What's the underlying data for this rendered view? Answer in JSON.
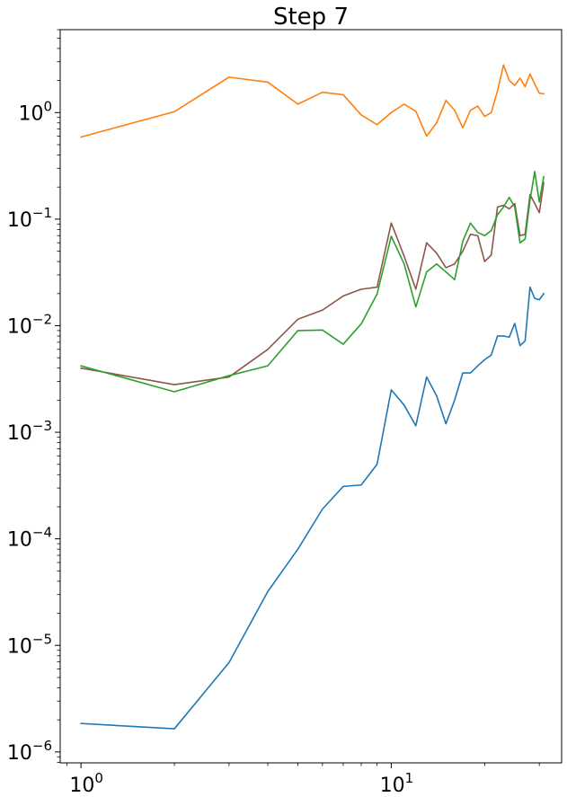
{
  "chart_data": {
    "type": "line",
    "title": "Step 7",
    "xlabel": "",
    "ylabel": "",
    "xscale": "log",
    "yscale": "log",
    "xlim": [
      0.857,
      35.4
    ],
    "ylim": [
      7.9e-07,
      6.0
    ],
    "grid": false,
    "x_ticks": [
      {
        "value": 1,
        "base": "10",
        "exp": "0"
      },
      {
        "value": 10,
        "base": "10",
        "exp": "1"
      }
    ],
    "y_ticks": [
      {
        "value": 1e-06,
        "base": "10",
        "exp": "−6"
      },
      {
        "value": 1e-05,
        "base": "10",
        "exp": "−5"
      },
      {
        "value": 0.0001,
        "base": "10",
        "exp": "−4"
      },
      {
        "value": 0.001,
        "base": "10",
        "exp": "−3"
      },
      {
        "value": 0.01,
        "base": "10",
        "exp": "−2"
      },
      {
        "value": 0.1,
        "base": "10",
        "exp": "−1"
      },
      {
        "value": 1,
        "base": "10",
        "exp": "0"
      }
    ],
    "series": [
      {
        "color": "#ff7f0e",
        "x": [
          1,
          2,
          3,
          4,
          5,
          6,
          7,
          8,
          9,
          10,
          11,
          12,
          13,
          14,
          15,
          16,
          17,
          18,
          19,
          20,
          21,
          22,
          23,
          24,
          25,
          26,
          27,
          28,
          29,
          30,
          31
        ],
        "y": [
          0.59,
          1.02,
          2.15,
          1.93,
          1.2,
          1.55,
          1.47,
          0.95,
          0.77,
          1.0,
          1.2,
          1.03,
          0.6,
          0.8,
          1.3,
          1.05,
          0.72,
          1.05,
          1.15,
          0.92,
          1.0,
          1.6,
          2.8,
          2.0,
          1.8,
          2.1,
          1.75,
          2.3,
          1.85,
          1.52,
          1.5
        ]
      },
      {
        "color": "#8c564b",
        "x": [
          1,
          2,
          3,
          4,
          5,
          6,
          7,
          8,
          9,
          10,
          11,
          12,
          13,
          14,
          15,
          16,
          17,
          18,
          19,
          20,
          21,
          22,
          23,
          24,
          25,
          26,
          27,
          28,
          29,
          30,
          31
        ],
        "y": [
          0.004,
          0.0028,
          0.0033,
          0.006,
          0.0115,
          0.014,
          0.019,
          0.022,
          0.023,
          0.092,
          0.045,
          0.022,
          0.06,
          0.048,
          0.035,
          0.038,
          0.05,
          0.072,
          0.07,
          0.04,
          0.046,
          0.13,
          0.135,
          0.125,
          0.14,
          0.07,
          0.072,
          0.17,
          0.14,
          0.115,
          0.22
        ]
      },
      {
        "color": "#2ca02c",
        "x": [
          1,
          2,
          3,
          4,
          5,
          6,
          7,
          8,
          9,
          10,
          11,
          12,
          13,
          14,
          15,
          16,
          17,
          18,
          19,
          20,
          21,
          22,
          23,
          24,
          25,
          26,
          27,
          28,
          29,
          30,
          31
        ],
        "y": [
          0.0042,
          0.0024,
          0.0034,
          0.0042,
          0.009,
          0.0091,
          0.0067,
          0.0104,
          0.0198,
          0.069,
          0.038,
          0.015,
          0.032,
          0.038,
          0.032,
          0.027,
          0.062,
          0.092,
          0.075,
          0.07,
          0.078,
          0.11,
          0.13,
          0.16,
          0.13,
          0.06,
          0.065,
          0.15,
          0.28,
          0.145,
          0.25
        ]
      },
      {
        "color": "#1f77b4",
        "x": [
          1,
          2,
          3,
          4,
          5,
          6,
          7,
          8,
          9,
          10,
          11,
          12,
          13,
          14,
          15,
          16,
          17,
          18,
          19,
          20,
          21,
          22,
          23,
          24,
          25,
          26,
          27,
          28,
          29,
          30,
          31
        ],
        "y": [
          1.85e-06,
          1.65e-06,
          6.9e-06,
          3.2e-05,
          8e-05,
          0.00019,
          0.00031,
          0.00032,
          0.0005,
          0.0025,
          0.0018,
          0.00115,
          0.0033,
          0.0022,
          0.0012,
          0.002,
          0.0036,
          0.0036,
          0.0042,
          0.0048,
          0.0053,
          0.008,
          0.008,
          0.0078,
          0.0105,
          0.0065,
          0.0072,
          0.023,
          0.018,
          0.0175,
          0.02
        ]
      }
    ]
  }
}
